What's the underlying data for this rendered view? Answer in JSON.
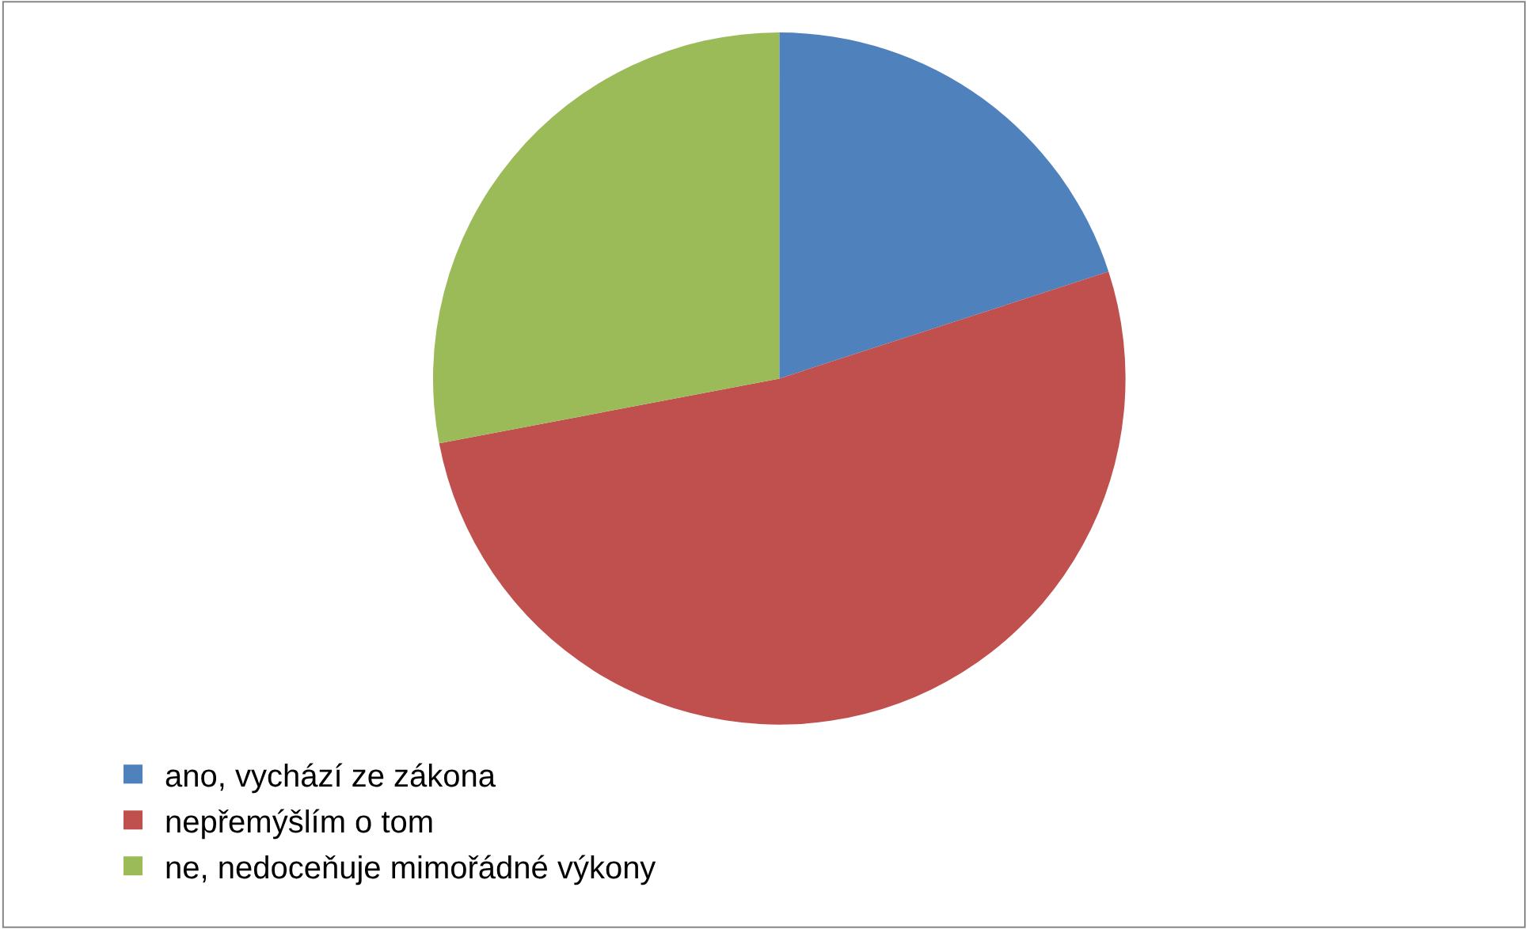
{
  "chart_data": {
    "type": "pie",
    "categories": [
      "ano, vychází ze zákona",
      "nepřemýšlím o tom",
      "ne, nedoceňuje mimořádné výkony"
    ],
    "values": [
      20,
      52,
      28
    ],
    "colors": [
      "#4f81bd",
      "#c0504d",
      "#9bbb59"
    ],
    "legend": "bottom"
  }
}
